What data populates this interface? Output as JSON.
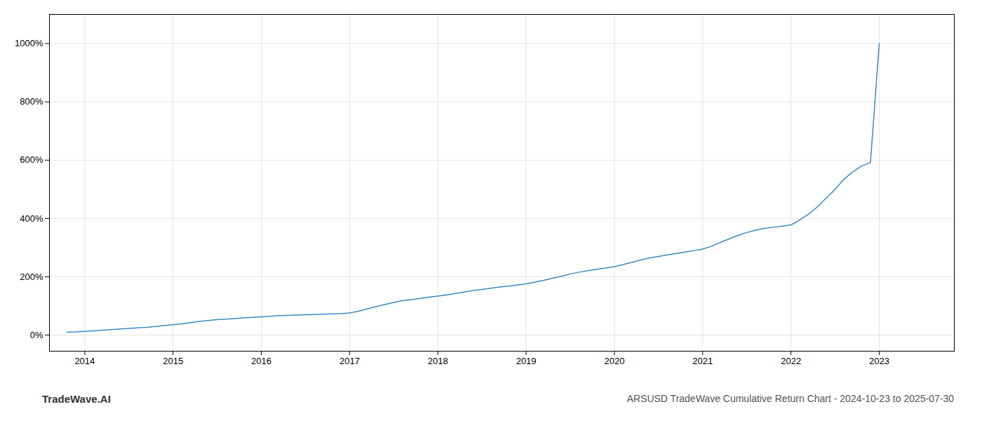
{
  "chart_data": {
    "type": "line",
    "title": "ARSUSD TradeWave Cumulative Return Chart - 2024-10-23 to 2025-07-30",
    "annotations": [
      "TradeWave.AI"
    ],
    "color": "#3a8bbf",
    "grid": true,
    "xlim": [
      2013.6,
      2023.85
    ],
    "ylim": [
      -55,
      1100
    ],
    "xticks": [
      2014,
      2015,
      2016,
      2017,
      2018,
      2019,
      2020,
      2021,
      2022,
      2023
    ],
    "yticks": [
      {
        "value": 0,
        "label": "0%"
      },
      {
        "value": 200,
        "label": "200%"
      },
      {
        "value": 400,
        "label": "400%"
      },
      {
        "value": 600,
        "label": "600%"
      },
      {
        "value": 800,
        "label": "800%"
      },
      {
        "value": 1000,
        "label": "1000%"
      }
    ],
    "x": [
      2013.8,
      2013.9,
      2014.0,
      2014.1,
      2014.2,
      2014.3,
      2014.4,
      2014.5,
      2014.6,
      2014.7,
      2014.8,
      2014.9,
      2015.0,
      2015.1,
      2015.2,
      2015.3,
      2015.4,
      2015.5,
      2015.6,
      2015.7,
      2015.8,
      2015.9,
      2016.0,
      2016.1,
      2016.2,
      2016.3,
      2016.4,
      2016.5,
      2016.6,
      2016.7,
      2016.8,
      2016.9,
      2017.0,
      2017.1,
      2017.2,
      2017.3,
      2017.4,
      2017.5,
      2017.6,
      2017.7,
      2017.8,
      2017.9,
      2018.0,
      2018.1,
      2018.2,
      2018.3,
      2018.4,
      2018.5,
      2018.6,
      2018.7,
      2018.8,
      2018.9,
      2019.0,
      2019.1,
      2019.2,
      2019.3,
      2019.4,
      2019.5,
      2019.6,
      2019.7,
      2019.8,
      2019.9,
      2020.0,
      2020.1,
      2020.2,
      2020.3,
      2020.4,
      2020.5,
      2020.6,
      2020.7,
      2020.8,
      2020.9,
      2021.0,
      2021.1,
      2021.2,
      2021.3,
      2021.4,
      2021.5,
      2021.6,
      2021.7,
      2021.8,
      2021.9,
      2022.0,
      2022.1,
      2022.2,
      2022.3,
      2022.4,
      2022.5,
      2022.6,
      2022.7,
      2022.8,
      2022.9,
      2023.0
    ],
    "values": [
      10,
      11,
      13,
      15,
      17,
      19,
      21,
      23,
      25,
      27,
      30,
      33,
      36,
      39,
      43,
      47,
      50,
      53,
      55,
      57,
      59,
      61,
      63,
      65,
      67,
      68,
      69,
      70,
      71,
      72,
      73,
      74,
      76,
      82,
      90,
      98,
      105,
      112,
      118,
      122,
      126,
      130,
      134,
      138,
      143,
      148,
      153,
      157,
      161,
      165,
      168,
      172,
      176,
      182,
      188,
      195,
      202,
      210,
      216,
      221,
      226,
      230,
      235,
      242,
      250,
      258,
      265,
      270,
      275,
      280,
      285,
      290,
      295,
      305,
      318,
      330,
      342,
      352,
      360,
      366,
      370,
      374,
      378,
      395,
      415,
      440,
      470,
      500,
      535,
      560,
      580,
      592,
      1000
    ]
  }
}
